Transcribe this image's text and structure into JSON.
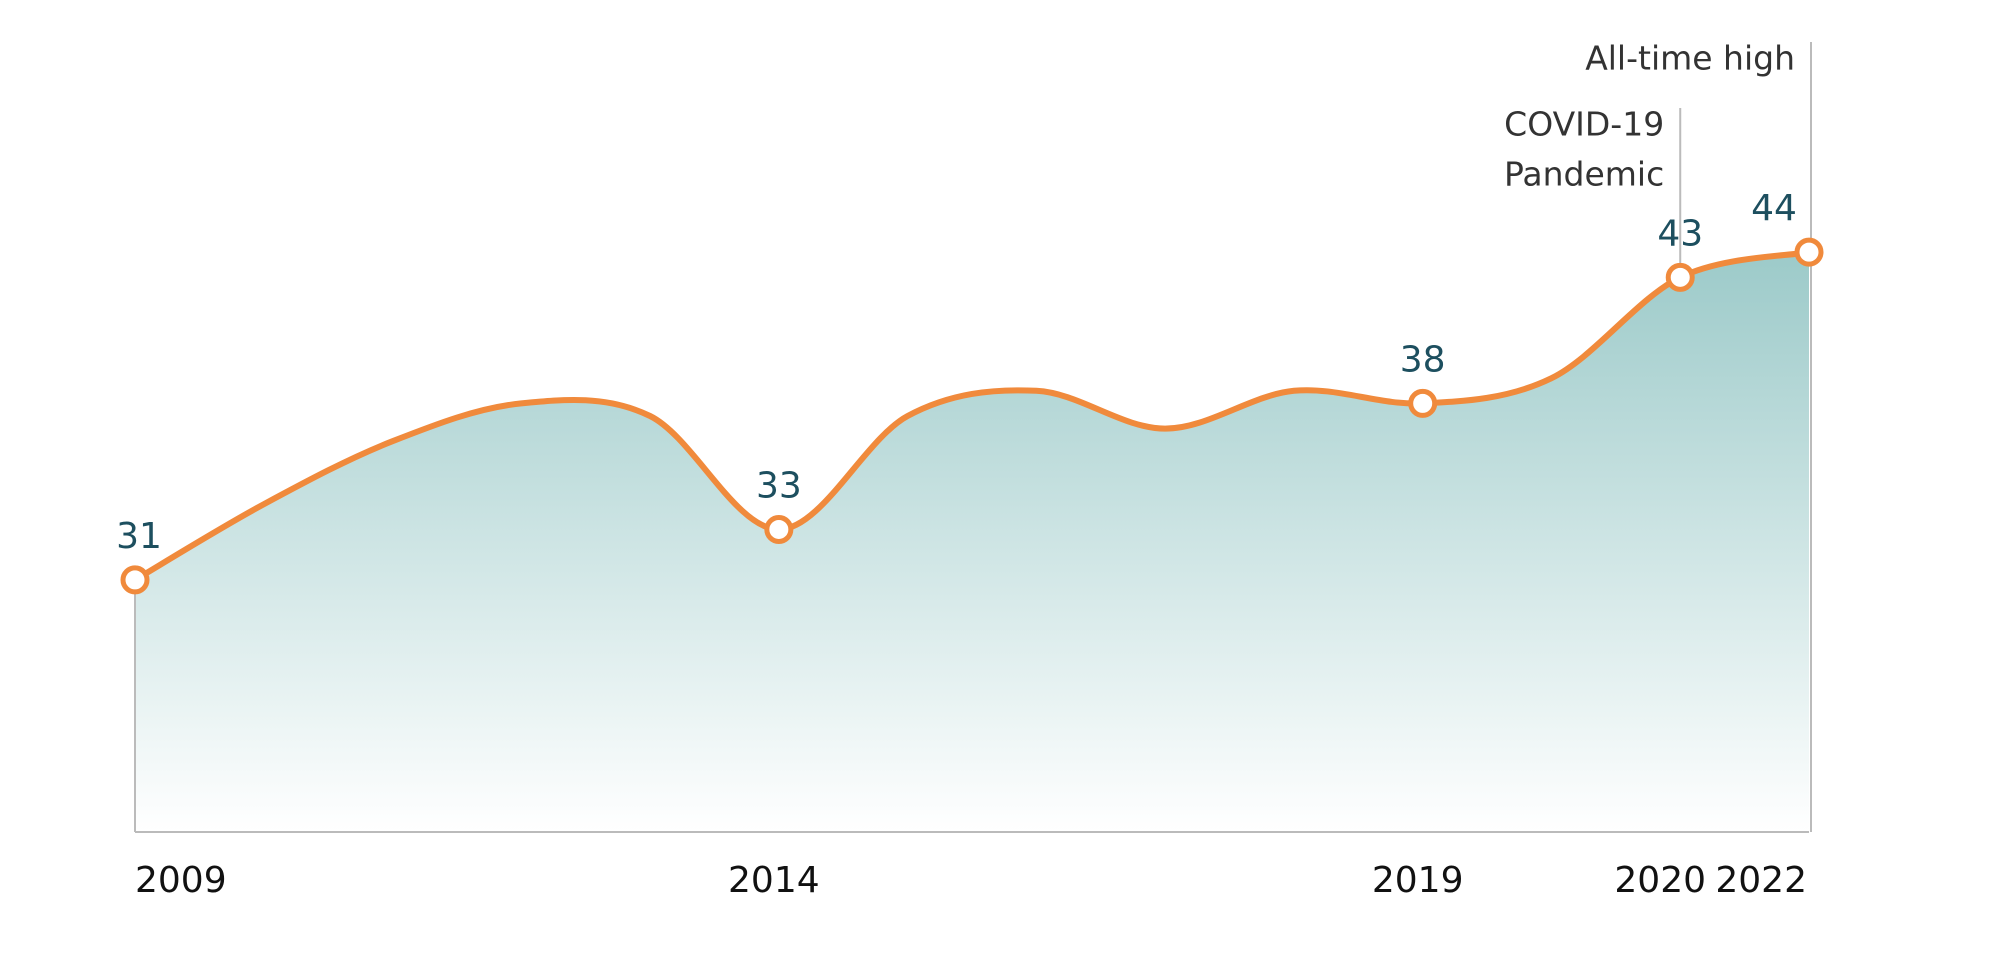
{
  "chart_data": {
    "type": "area",
    "categories": [
      "2009",
      null,
      null,
      null,
      null,
      "2014",
      null,
      null,
      null,
      null,
      "2019",
      null,
      "2020",
      "2022"
    ],
    "values": [
      31,
      34,
      36.5,
      38,
      37.5,
      33,
      37.5,
      38.5,
      37,
      38.5,
      38,
      39,
      43,
      44
    ],
    "color": "#f08a3c",
    "fill_color": "#9ccac9",
    "ylim": [
      21,
      54
    ],
    "annotations": [
      {
        "text": [
          "All-time high"
        ]
      },
      {
        "text": [
          "COVID-19",
          "Pandemic"
        ]
      }
    ]
  }
}
